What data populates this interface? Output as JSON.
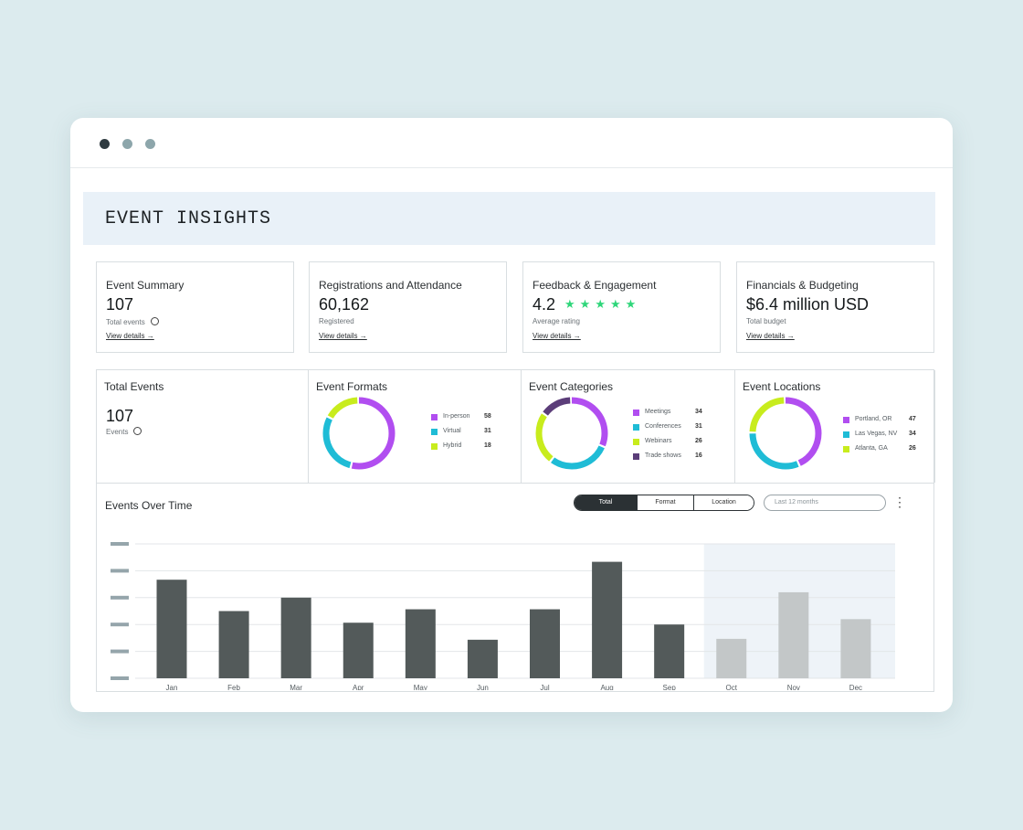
{
  "window": {
    "controls": [
      "close",
      "minimize",
      "maximize"
    ]
  },
  "header": {
    "title": "EVENT INSIGHTS"
  },
  "cards": [
    {
      "title": "Event Summary",
      "value": "107",
      "sub": "Total events",
      "link": "View details →"
    },
    {
      "title": "Registrations and Attendance",
      "value": "60,162",
      "sub": "Registered",
      "link": "View details →"
    },
    {
      "title": "Feedback & Engagement",
      "value": "4.2",
      "stars": "★★★★★",
      "sub": "Average rating",
      "link": "View details →"
    },
    {
      "title": "Financials & Budgeting",
      "value": "$6.4 million USD",
      "sub": "Total budget",
      "link": "View details →"
    }
  ],
  "sections": {
    "total": {
      "title": "Total Events",
      "value": "107",
      "sub": "Events"
    },
    "formats": {
      "title": "Event Formats",
      "items": [
        {
          "label": "In-person",
          "value": "58",
          "color": "#b14ef0"
        },
        {
          "label": "Virtual",
          "value": "31",
          "color": "#1fbcd6"
        },
        {
          "label": "Hybrid",
          "value": "18",
          "color": "#c8ec1d"
        }
      ]
    },
    "categories": {
      "title": "Event Categories",
      "items": [
        {
          "label": "Meetings",
          "value": "34",
          "color": "#b14ef0"
        },
        {
          "label": "Conferences",
          "value": "31",
          "color": "#1fbcd6"
        },
        {
          "label": "Webinars",
          "value": "26",
          "color": "#c8ec1d"
        },
        {
          "label": "Trade shows",
          "value": "16",
          "color": "#5b3d79"
        }
      ]
    },
    "locations": {
      "title": "Event Locations",
      "items": [
        {
          "label": "Portland, OR",
          "value": "47",
          "color": "#b14ef0"
        },
        {
          "label": "Las Vegas, NV",
          "value": "34",
          "color": "#1fbcd6"
        },
        {
          "label": "Atlanta, GA",
          "value": "26",
          "color": "#c8ec1d"
        }
      ]
    }
  },
  "chart": {
    "title": "Events Over Time",
    "segment": [
      "Total",
      "Format",
      "Location"
    ],
    "date_placeholder": "Last 12 months",
    "kebab": "⋮"
  },
  "chart_data": {
    "type": "bar",
    "categories": [
      "Jan",
      "Feb",
      "Mar",
      "Apr",
      "May",
      "Jun",
      "Jul",
      "Aug",
      "Sep",
      "Oct",
      "Nov",
      "Dec"
    ],
    "values": [
      11,
      7.5,
      9,
      6.2,
      7.7,
      4.3,
      7.7,
      13,
      6,
      4.4,
      9.6,
      6.6
    ],
    "projected_from_index": 9,
    "ylim": [
      0,
      15
    ],
    "grid": true,
    "colors": {
      "actual": "#535a5a",
      "projected": "#c3c7c8",
      "projected_band": "#eef3f8"
    }
  }
}
